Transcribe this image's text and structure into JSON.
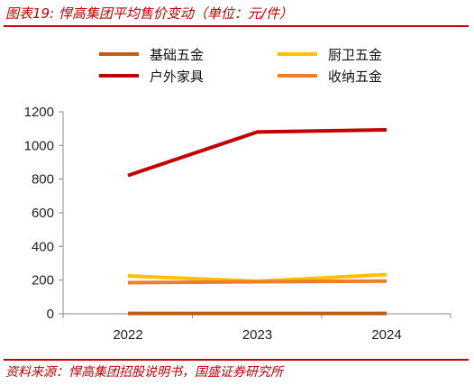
{
  "figure": {
    "title": "图表19:  悍高集团平均售价变动（单位：元/件）",
    "source": "资料来源：悍高集团招股说明书，国盛证券研究所"
  },
  "chart_data": {
    "type": "line",
    "x": [
      "2022",
      "2023",
      "2024"
    ],
    "ylim": [
      0,
      1200
    ],
    "yticks": [
      0,
      200,
      400,
      600,
      800,
      1000,
      1200
    ],
    "grid": false,
    "legend_position": "top",
    "series": [
      {
        "name": "基础五金",
        "color": "#c55a11",
        "values": [
          2,
          2,
          2
        ]
      },
      {
        "name": "厨卫五金",
        "color": "#ffc000",
        "values": [
          225,
          193,
          233
        ]
      },
      {
        "name": "户外家具",
        "color": "#c00000",
        "values": [
          822,
          1080,
          1093
        ]
      },
      {
        "name": "收纳五金",
        "color": "#ed7d31",
        "values": [
          185,
          190,
          194
        ]
      }
    ]
  }
}
